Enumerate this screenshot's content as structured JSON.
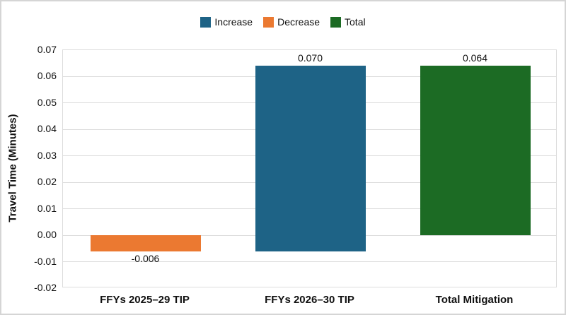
{
  "colors": {
    "increase_blue": "#1e6386",
    "decrease_orange": "#eb7931",
    "total_green": "#1c6b24",
    "gridline_gray": "#dcdcdc",
    "frame_border_gray": "#d5d5d5",
    "text_black": "#111111"
  },
  "legend": {
    "items": [
      {
        "label": "Increase",
        "color": "#1e6386"
      },
      {
        "label": "Decrease",
        "color": "#eb7931"
      },
      {
        "label": "Total",
        "color": "#1c6b24"
      }
    ]
  },
  "chart_data": {
    "type": "bar",
    "subtype": "waterfall",
    "title": "",
    "ylabel": "Travel Time (Minutes)",
    "xlabel": "",
    "ylim": [
      -0.02,
      0.07
    ],
    "ytick_step": 0.01,
    "ytick_labels": [
      "0.07",
      "0.06",
      "0.05",
      "0.04",
      "0.03",
      "0.02",
      "0.01",
      "0.00",
      "-0.01",
      "-0.02"
    ],
    "grid": "horizontal",
    "legend_position": "top-center",
    "categories": [
      "FFYs 2025–29 TIP",
      "FFYs 2026–30 TIP",
      "Total Mitigation"
    ],
    "bars": [
      {
        "category": "FFYs 2025–29 TIP",
        "series": "Decrease",
        "value": -0.006,
        "segment_start": 0,
        "segment_end": -0.006,
        "data_label": "-0.006",
        "color": "#eb7931"
      },
      {
        "category": "FFYs 2026–30 TIP",
        "series": "Increase",
        "value": 0.07,
        "segment_start": -0.006,
        "segment_end": 0.064,
        "data_label": "0.070",
        "color": "#1e6386"
      },
      {
        "category": "Total Mitigation",
        "series": "Total",
        "value": 0.064,
        "segment_start": 0,
        "segment_end": 0.064,
        "data_label": "0.064",
        "color": "#1c6b24"
      }
    ]
  }
}
